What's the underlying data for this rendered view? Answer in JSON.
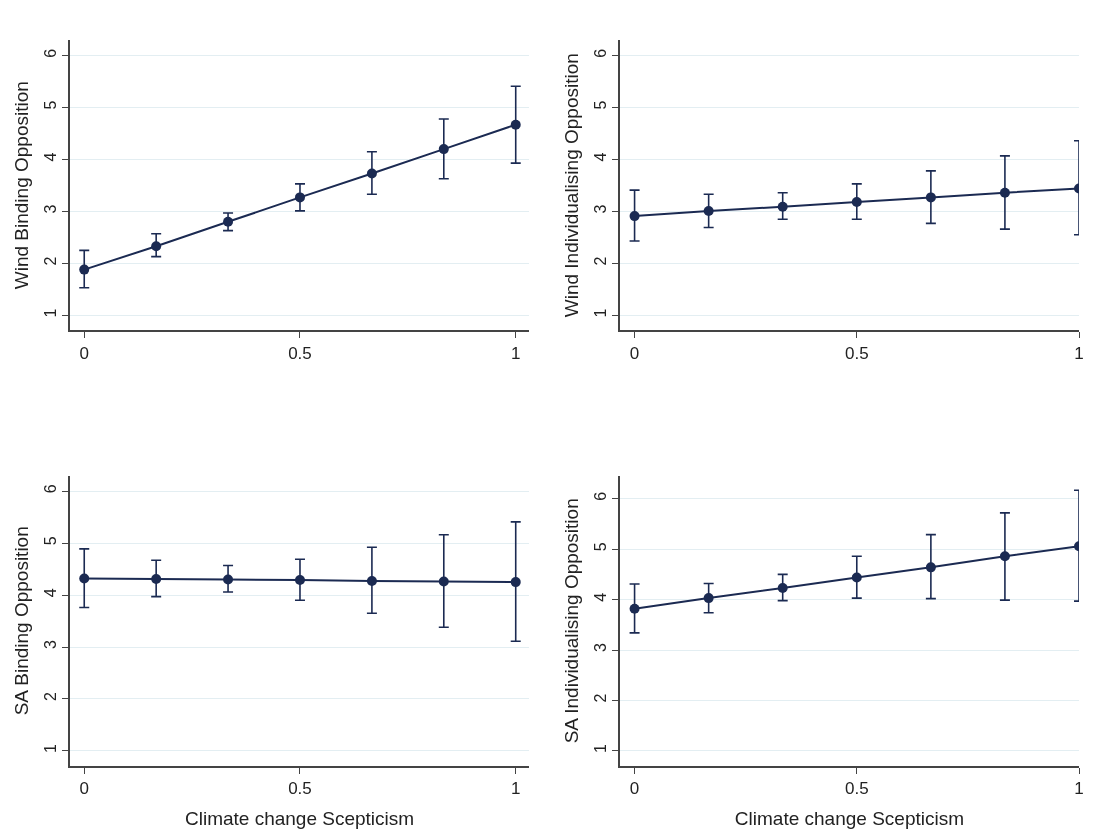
{
  "chart_data": [
    {
      "type": "line",
      "ylabel": "Wind Binding Opposition",
      "x": [
        0,
        0.1667,
        0.3333,
        0.5,
        0.6667,
        0.8333,
        1
      ],
      "xlim": [
        -0.033,
        1.031
      ],
      "xticks": [
        0,
        0.5,
        1
      ],
      "ylim": [
        0.71,
        6.3
      ],
      "yticks": [
        1,
        2,
        3,
        4,
        5,
        6
      ],
      "grid": "y",
      "marker": "circle",
      "line_style": "solid",
      "series": [
        {
          "color": "#1b2a52",
          "values": [
            1.88,
            2.33,
            2.8,
            3.27,
            3.73,
            4.2,
            4.67
          ],
          "errors": [
            [
              1.53,
              2.25
            ],
            [
              2.13,
              2.57
            ],
            [
              2.63,
              2.97
            ],
            [
              3.01,
              3.53
            ],
            [
              3.33,
              4.15
            ],
            [
              3.63,
              4.78
            ],
            [
              3.93,
              5.41
            ]
          ]
        }
      ]
    },
    {
      "type": "line",
      "ylabel": "Wind Individualising Opposition",
      "x": [
        0,
        0.1667,
        0.3333,
        0.5,
        0.6667,
        0.8333,
        1
      ],
      "xlim": [
        -0.033,
        1.0
      ],
      "xticks": [
        0,
        0.5,
        1
      ],
      "ylim": [
        0.71,
        6.3
      ],
      "yticks": [
        1,
        2,
        3,
        4,
        5,
        6
      ],
      "grid": "y",
      "marker": "circle",
      "line_style": "solid",
      "series": [
        {
          "color": "#1b2a52",
          "values": [
            2.91,
            3.01,
            3.09,
            3.18,
            3.27,
            3.36,
            3.44
          ],
          "errors": [
            [
              2.43,
              3.41
            ],
            [
              2.69,
              3.33
            ],
            [
              2.85,
              3.36
            ],
            [
              2.85,
              3.53
            ],
            [
              2.77,
              3.78
            ],
            [
              2.66,
              4.07
            ],
            [
              2.55,
              4.36
            ]
          ]
        }
      ]
    },
    {
      "type": "line",
      "xlabel": "Climate change Scepticism",
      "ylabel": "SA Binding Opposition",
      "x": [
        0,
        0.1667,
        0.3333,
        0.5,
        0.6667,
        0.8333,
        1
      ],
      "xlim": [
        -0.033,
        1.031
      ],
      "xticks": [
        0,
        0.5,
        1
      ],
      "ylim": [
        0.71,
        6.3
      ],
      "yticks": [
        1,
        2,
        3,
        4,
        5,
        6
      ],
      "grid": "y",
      "marker": "circle",
      "line_style": "solid",
      "series": [
        {
          "color": "#1b2a52",
          "values": [
            4.32,
            4.31,
            4.3,
            4.29,
            4.27,
            4.26,
            4.25
          ],
          "errors": [
            [
              3.76,
              4.89
            ],
            [
              3.97,
              4.67
            ],
            [
              4.06,
              4.57
            ],
            [
              3.9,
              4.69
            ],
            [
              3.65,
              4.92
            ],
            [
              3.38,
              5.16
            ],
            [
              3.11,
              5.41
            ]
          ]
        }
      ]
    },
    {
      "type": "line",
      "xlabel": "Climate change Scepticism",
      "ylabel": "SA Individualising Opposition",
      "x": [
        0,
        0.1667,
        0.3333,
        0.5,
        0.6667,
        0.8333,
        1
      ],
      "xlim": [
        -0.033,
        1.0
      ],
      "xticks": [
        0,
        0.5,
        1
      ],
      "ylim": [
        0.7,
        6.46
      ],
      "yticks": [
        1,
        2,
        3,
        4,
        5,
        6
      ],
      "grid": "y",
      "marker": "circle",
      "line_style": "solid",
      "series": [
        {
          "color": "#1b2a52",
          "values": [
            3.82,
            4.03,
            4.23,
            4.44,
            4.64,
            4.86,
            5.06
          ],
          "errors": [
            [
              3.34,
              4.31
            ],
            [
              3.74,
              4.32
            ],
            [
              3.98,
              4.5
            ],
            [
              4.03,
              4.86
            ],
            [
              4.02,
              5.29
            ],
            [
              3.99,
              5.72
            ],
            [
              3.97,
              6.17
            ]
          ]
        }
      ]
    }
  ]
}
